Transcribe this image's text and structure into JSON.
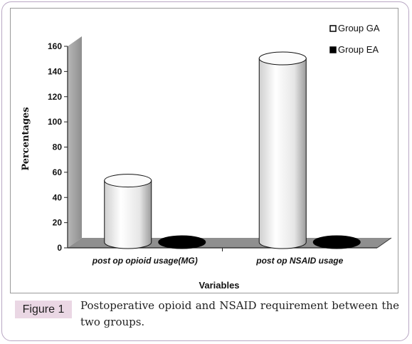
{
  "chart_data": {
    "type": "bar",
    "categories": [
      "post op opioid usage(MG)",
      "post op NSAID usage"
    ],
    "series": [
      {
        "name": "Group GA",
        "values": [
          50,
          147
        ],
        "color": "#f4f4f4"
      },
      {
        "name": "Group EA",
        "values": [
          0,
          0
        ],
        "color": "#000000"
      }
    ],
    "ylabel": "Percentages",
    "xlabel": "Variables",
    "ylim": [
      0,
      160
    ],
    "yticks": [
      0,
      20,
      40,
      60,
      80,
      100,
      120,
      140,
      160
    ],
    "legend": "top-right",
    "style": "3d-cylinder"
  },
  "caption": {
    "label": "Figure 1",
    "text": "Postoperative opioid and NSAID requirement between the two groups."
  }
}
